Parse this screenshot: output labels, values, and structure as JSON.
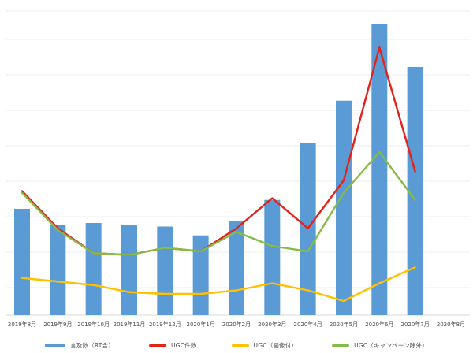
{
  "chart_data": {
    "type": "combo",
    "title": "",
    "xlabel": "",
    "ylabel": "",
    "categories": [
      "2019年8月",
      "2019年9月",
      "2019年10月",
      "2019年11月",
      "2019年12月",
      "2020年1月",
      "2020年2月",
      "2020年3月",
      "2020年4月",
      "2020年5月",
      "2020年6月",
      "2020年7月",
      "2020年8月"
    ],
    "series": [
      {
        "name": "言及数（RT含）",
        "type": "bar",
        "color": "#5b9bd5",
        "values": [
          30,
          25.5,
          26,
          25.5,
          25,
          22.5,
          26.5,
          32.5,
          48.5,
          60.5,
          82,
          70,
          null
        ]
      },
      {
        "name": "UGC件数",
        "type": "line",
        "color": "#e32219",
        "values": [
          35,
          24.5,
          17.5,
          17,
          19,
          18,
          24.5,
          33,
          24.5,
          38,
          75.5,
          40.5,
          null
        ]
      },
      {
        "name": "UGC（画像付）",
        "type": "line",
        "color": "#ffc000",
        "values": [
          10.5,
          9.5,
          8.5,
          6.5,
          6,
          6,
          7,
          9,
          7,
          4,
          9,
          13.5,
          null
        ]
      },
      {
        "name": "UGC（キャンペーン除外）",
        "type": "line",
        "color": "#85bb47",
        "values": [
          34.5,
          24,
          17.5,
          17,
          19,
          18,
          23.5,
          19.5,
          18,
          34.5,
          46,
          32.5,
          null
        ]
      }
    ],
    "y_axis": {
      "labels_visible": false,
      "min": 0,
      "max": 90,
      "gridline_step": 10,
      "units": "relative (no axis labels shown)"
    },
    "grid": true,
    "legend_position": "bottom"
  },
  "colors": {
    "gridline": "#ececec",
    "axis_line": "#d9d9d9",
    "label_text": "#4a4a4a",
    "background": "#ffffff"
  }
}
